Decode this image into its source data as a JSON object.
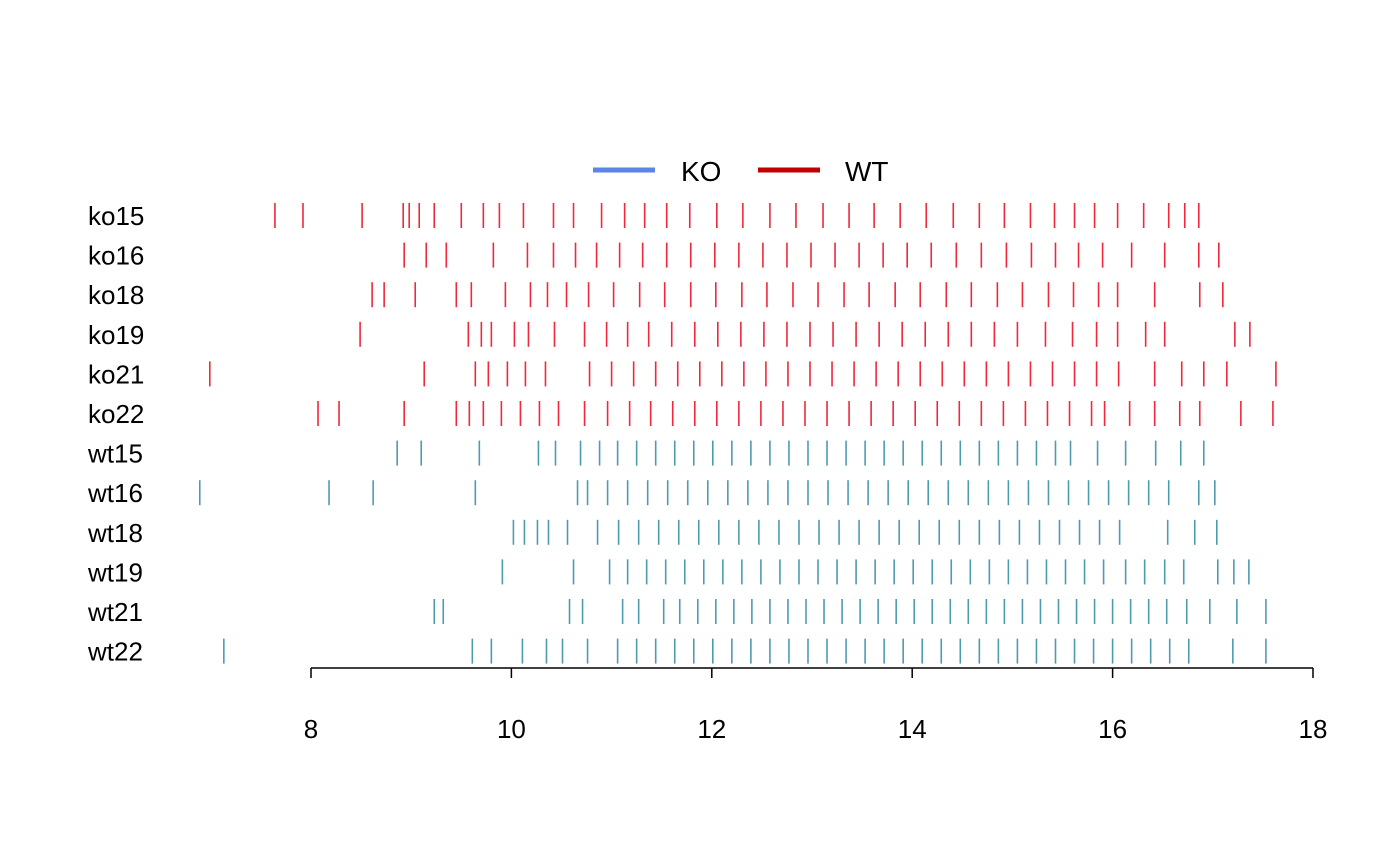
{
  "chart_data": {
    "type": "rug",
    "title": "",
    "xlabel": "",
    "ylabel": "",
    "xlim": [
      8,
      18
    ],
    "x_ticks": [
      8,
      10,
      12,
      14,
      16,
      18
    ],
    "x_tick_labels": [
      "8",
      "10",
      "12",
      "14",
      "16",
      "18"
    ],
    "legend": {
      "placement": "top",
      "items": [
        {
          "label": "KO",
          "color": "#5b86e5"
        },
        {
          "label": "WT",
          "color": "#c00000"
        }
      ]
    },
    "colors": {
      "ko_marks": "#f0001a",
      "wt_marks": "#2f8aa3"
    },
    "rows": [
      {
        "label": "ko15",
        "group": "KO",
        "points": [
          7.64,
          7.92,
          8.51,
          8.92,
          8.98,
          9.08,
          9.23,
          9.5,
          9.72,
          9.88,
          10.12,
          10.42,
          10.62,
          10.9,
          11.13,
          11.33,
          11.55,
          11.78,
          12.05,
          12.31,
          12.58,
          12.84,
          13.11,
          13.37,
          13.62,
          13.88,
          14.14,
          14.41,
          14.67,
          14.92,
          15.18,
          15.42,
          15.62,
          15.82,
          16.05,
          16.31,
          16.56,
          16.72,
          16.86
        ]
      },
      {
        "label": "ko16",
        "group": "KO",
        "points": [
          8.93,
          9.15,
          9.35,
          9.82,
          10.16,
          10.42,
          10.64,
          10.85,
          11.08,
          11.31,
          11.55,
          11.79,
          12.03,
          12.27,
          12.51,
          12.75,
          12.99,
          13.23,
          13.47,
          13.71,
          13.95,
          14.19,
          14.44,
          14.69,
          14.94,
          15.19,
          15.43,
          15.66,
          15.9,
          16.19,
          16.52,
          16.86,
          17.06
        ]
      },
      {
        "label": "ko18",
        "group": "KO",
        "points": [
          8.61,
          8.73,
          9.04,
          9.45,
          9.6,
          9.94,
          10.19,
          10.36,
          10.55,
          10.77,
          11.02,
          11.28,
          11.53,
          11.79,
          12.04,
          12.3,
          12.55,
          12.81,
          13.06,
          13.32,
          13.57,
          13.83,
          14.08,
          14.34,
          14.59,
          14.85,
          15.1,
          15.36,
          15.61,
          15.86,
          16.05,
          16.42,
          16.87,
          17.1
        ]
      },
      {
        "label": "ko19",
        "group": "KO",
        "points": [
          8.49,
          9.57,
          9.7,
          9.8,
          10.03,
          10.17,
          10.43,
          10.73,
          10.95,
          11.16,
          11.37,
          11.6,
          11.83,
          12.06,
          12.29,
          12.52,
          12.75,
          12.98,
          13.21,
          13.44,
          13.67,
          13.9,
          14.13,
          14.36,
          14.59,
          14.82,
          15.05,
          15.33,
          15.6,
          15.84,
          16.05,
          16.33,
          16.52,
          17.22,
          17.37
        ]
      },
      {
        "label": "ko21",
        "group": "KO",
        "points": [
          6.99,
          9.13,
          9.64,
          9.77,
          9.96,
          10.14,
          10.34,
          10.78,
          11.0,
          11.22,
          11.44,
          11.66,
          11.88,
          12.1,
          12.32,
          12.54,
          12.76,
          12.98,
          13.2,
          13.42,
          13.64,
          13.86,
          14.08,
          14.3,
          14.52,
          14.74,
          14.96,
          15.18,
          15.4,
          15.62,
          15.84,
          16.06,
          16.42,
          16.69,
          16.91,
          17.14,
          17.63
        ]
      },
      {
        "label": "ko22",
        "group": "KO",
        "points": [
          8.07,
          8.28,
          8.93,
          9.45,
          9.58,
          9.72,
          9.9,
          10.09,
          10.28,
          10.47,
          10.73,
          10.96,
          11.18,
          11.39,
          11.61,
          11.83,
          12.05,
          12.27,
          12.49,
          12.71,
          12.93,
          13.15,
          13.37,
          13.59,
          13.81,
          14.03,
          14.25,
          14.47,
          14.69,
          14.91,
          15.13,
          15.35,
          15.57,
          15.79,
          15.92,
          16.17,
          16.42,
          16.67,
          16.87,
          17.28,
          17.6
        ]
      },
      {
        "label": "wt15",
        "group": "WT",
        "points": [
          8.86,
          9.1,
          9.68,
          10.27,
          10.44,
          10.69,
          10.88,
          11.06,
          11.25,
          11.44,
          11.63,
          11.82,
          12.01,
          12.2,
          12.39,
          12.58,
          12.77,
          12.96,
          13.15,
          13.34,
          13.53,
          13.72,
          13.91,
          14.1,
          14.29,
          14.48,
          14.67,
          14.86,
          15.05,
          15.24,
          15.43,
          15.58,
          15.85,
          16.13,
          16.43,
          16.68,
          16.91
        ]
      },
      {
        "label": "wt16",
        "group": "WT",
        "points": [
          6.89,
          8.18,
          8.62,
          9.64,
          10.66,
          10.76,
          10.96,
          11.16,
          11.36,
          11.56,
          11.76,
          11.96,
          12.16,
          12.36,
          12.56,
          12.76,
          12.96,
          13.16,
          13.36,
          13.56,
          13.76,
          13.96,
          14.16,
          14.36,
          14.56,
          14.76,
          14.96,
          15.16,
          15.36,
          15.56,
          15.76,
          15.96,
          16.16,
          16.36,
          16.56,
          16.86,
          17.02
        ]
      },
      {
        "label": "wt18",
        "group": "WT",
        "points": [
          10.02,
          10.13,
          10.26,
          10.37,
          10.56,
          10.86,
          11.07,
          11.27,
          11.47,
          11.67,
          11.87,
          12.07,
          12.27,
          12.47,
          12.67,
          12.87,
          13.07,
          13.27,
          13.47,
          13.67,
          13.87,
          14.07,
          14.27,
          14.47,
          14.67,
          14.87,
          15.07,
          15.27,
          15.47,
          15.67,
          15.87,
          16.07,
          16.55,
          16.82,
          17.04
        ]
      },
      {
        "label": "wt19",
        "group": "WT",
        "points": [
          9.91,
          10.62,
          10.98,
          11.16,
          11.35,
          11.54,
          11.73,
          11.92,
          12.11,
          12.3,
          12.49,
          12.68,
          12.87,
          13.06,
          13.25,
          13.44,
          13.63,
          13.82,
          14.01,
          14.2,
          14.39,
          14.58,
          14.77,
          14.96,
          15.15,
          15.34,
          15.53,
          15.72,
          15.91,
          16.13,
          16.32,
          16.52,
          16.71,
          17.05,
          17.21,
          17.36
        ]
      },
      {
        "label": "wt21",
        "group": "WT",
        "points": [
          9.23,
          9.32,
          10.58,
          10.71,
          11.11,
          11.27,
          11.52,
          11.68,
          11.86,
          12.04,
          12.22,
          12.4,
          12.58,
          12.76,
          12.94,
          13.12,
          13.3,
          13.48,
          13.66,
          13.84,
          14.02,
          14.2,
          14.38,
          14.56,
          14.74,
          14.92,
          15.1,
          15.28,
          15.46,
          15.64,
          15.82,
          16.0,
          16.18,
          16.36,
          16.54,
          16.74,
          16.97,
          17.24,
          17.53
        ]
      },
      {
        "label": "wt22",
        "group": "WT",
        "points": [
          7.13,
          9.61,
          9.8,
          10.11,
          10.35,
          10.51,
          10.76,
          11.06,
          11.25,
          11.44,
          11.63,
          11.82,
          12.01,
          12.2,
          12.39,
          12.58,
          12.77,
          12.96,
          13.15,
          13.34,
          13.53,
          13.72,
          13.91,
          14.1,
          14.29,
          14.48,
          14.67,
          14.86,
          15.05,
          15.24,
          15.43,
          15.62,
          15.81,
          16.0,
          16.19,
          16.38,
          16.57,
          16.76,
          17.2,
          17.53
        ]
      }
    ]
  }
}
